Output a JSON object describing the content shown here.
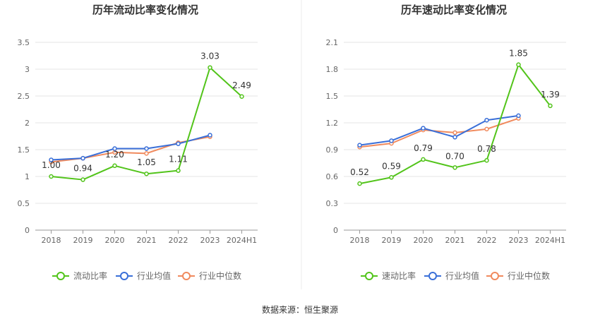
{
  "source_label": "数据来源：恒生聚源",
  "chart_data": [
    {
      "type": "line",
      "title": "历年流动比率变化情况",
      "categories": [
        "2018",
        "2019",
        "2020",
        "2021",
        "2022",
        "2023",
        "2024H1"
      ],
      "ylim": [
        0,
        3.5
      ],
      "yticks": [
        "0",
        "0.5",
        "1",
        "1.5",
        "2",
        "2.5",
        "3",
        "3.5"
      ],
      "grid": true,
      "legend_position": "bottom",
      "series": [
        {
          "name": "流动比率",
          "color": "#52c41a",
          "values": [
            1.0,
            0.94,
            1.2,
            1.05,
            1.11,
            3.03,
            2.49
          ],
          "labels": [
            "1.00",
            "0.94",
            "1.20",
            "1.05",
            "1.11",
            "3.03",
            "2.49"
          ]
        },
        {
          "name": "行业均值",
          "color": "#3a6fd8",
          "values": [
            1.31,
            1.34,
            1.52,
            1.52,
            1.61,
            1.77,
            null
          ]
        },
        {
          "name": "行业中位数",
          "color": "#f08a5d",
          "values": [
            1.27,
            1.34,
            1.45,
            1.43,
            1.63,
            1.74,
            null
          ]
        }
      ]
    },
    {
      "type": "line",
      "title": "历年速动比率变化情况",
      "categories": [
        "2018",
        "2019",
        "2020",
        "2021",
        "2022",
        "2023",
        "2024H1"
      ],
      "ylim": [
        0,
        2.1
      ],
      "yticks": [
        "0",
        "0.3",
        "0.6",
        "0.9",
        "1.2",
        "1.5",
        "1.8",
        "2.1"
      ],
      "grid": true,
      "legend_position": "bottom",
      "series": [
        {
          "name": "速动比率",
          "color": "#52c41a",
          "values": [
            0.52,
            0.59,
            0.79,
            0.7,
            0.78,
            1.85,
            1.39
          ],
          "labels": [
            "0.52",
            "0.59",
            "0.79",
            "0.70",
            "0.78",
            "1.85",
            "1.39"
          ]
        },
        {
          "name": "行业均值",
          "color": "#3a6fd8",
          "values": [
            0.95,
            1.0,
            1.14,
            1.04,
            1.23,
            1.28,
            null
          ]
        },
        {
          "name": "行业中位数",
          "color": "#f08a5d",
          "values": [
            0.93,
            0.97,
            1.12,
            1.09,
            1.13,
            1.25,
            null
          ]
        }
      ]
    }
  ]
}
